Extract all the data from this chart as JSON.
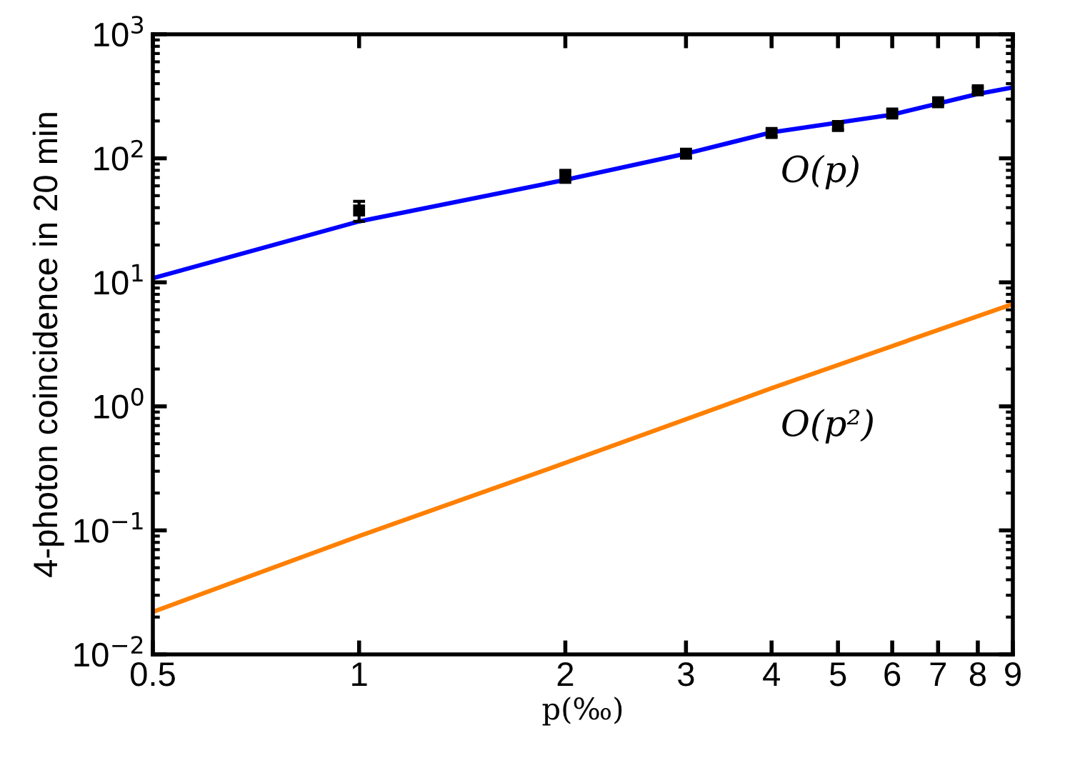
{
  "chart_data": {
    "type": "line",
    "xlabel": "p(‰)",
    "ylabel": "4-photon coincidence in 20 min",
    "log": "xy",
    "xlim": [
      0.5,
      9
    ],
    "xticks": [
      0.5,
      1,
      2,
      3,
      4,
      5,
      6,
      7,
      8,
      9
    ],
    "ylim": [
      0.01,
      1000
    ],
    "yticks": [
      {
        "value": 0.01,
        "label": "10$^{−2}$"
      },
      {
        "value": 0.1,
        "label": "10$^{−1}$"
      },
      {
        "value": 1,
        "label": "10$^{0}$"
      },
      {
        "value": 10,
        "label": "10$^{1}$"
      },
      {
        "value": 100,
        "label": "10$^{2}$"
      },
      {
        "value": 1000,
        "label": "10$^{3}$"
      }
    ],
    "grid": false,
    "legend": false,
    "series": [
      {
        "type": "scatter",
        "color": "#000000",
        "marker": "square",
        "x": [
          1,
          2,
          3,
          4,
          5,
          6,
          7,
          8
        ],
        "values": [
          38,
          72,
          109,
          160,
          182,
          230,
          283,
          354
        ],
        "errors": [
          7,
          8,
          8,
          10,
          12,
          13,
          15,
          18
        ]
      },
      {
        "name": "O(p)",
        "color": "#0000ff",
        "line_style": "solid",
        "x": [
          0.5,
          1,
          2,
          3,
          4,
          6,
          8,
          9
        ],
        "values": [
          10.8,
          31,
          67,
          109,
          162,
          225,
          330,
          373
        ]
      },
      {
        "name": "O(p²)",
        "color": "#ff8000",
        "line_style": "solid",
        "x": [
          0.5,
          1,
          2,
          4,
          9
        ],
        "values": [
          0.022,
          0.09,
          0.35,
          1.4,
          6.7
        ]
      }
    ]
  }
}
